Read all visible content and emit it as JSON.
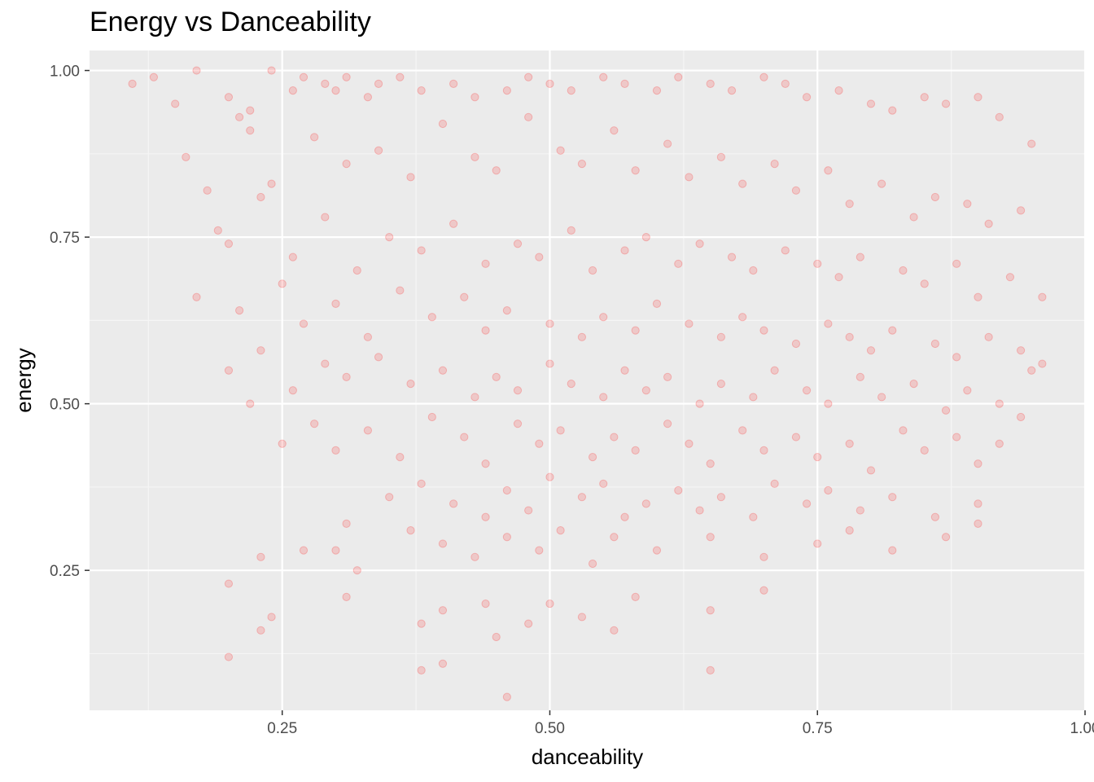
{
  "chart_data": {
    "type": "scatter",
    "title": "Energy vs Danceability",
    "xlabel": "danceability",
    "ylabel": "energy",
    "xlim": [
      0.07,
      1.0
    ],
    "ylim": [
      0.04,
      1.03
    ],
    "x_ticks": [
      0.25,
      0.5,
      0.75,
      1.0
    ],
    "x_tick_labels": [
      "0.25",
      "0.50",
      "0.75",
      "1.00"
    ],
    "y_ticks": [
      0.25,
      0.5,
      0.75,
      1.0
    ],
    "y_tick_labels": [
      "0.25",
      "0.50",
      "0.75",
      "1.00"
    ],
    "x_minor": [
      0.125,
      0.375,
      0.625,
      0.875
    ],
    "y_minor": [
      0.125,
      0.375,
      0.625,
      0.875
    ],
    "grid": true,
    "point_color": "#ff0000",
    "point_alpha": 0.15,
    "background": "#ebebeb",
    "series": [
      {
        "x": [
          0.11,
          0.13,
          0.17,
          0.15,
          0.2,
          0.21,
          0.22,
          0.24,
          0.26,
          0.27,
          0.29,
          0.3,
          0.31,
          0.33,
          0.34,
          0.36,
          0.38,
          0.41,
          0.43,
          0.46,
          0.48,
          0.5,
          0.52,
          0.55,
          0.57,
          0.6,
          0.62,
          0.65,
          0.67,
          0.7,
          0.72,
          0.74,
          0.77,
          0.8,
          0.82,
          0.85,
          0.87,
          0.9,
          0.92,
          0.95,
          0.16,
          0.18,
          0.22,
          0.24,
          0.28,
          0.31,
          0.34,
          0.37,
          0.4,
          0.43,
          0.45,
          0.48,
          0.51,
          0.53,
          0.56,
          0.58,
          0.61,
          0.63,
          0.66,
          0.68,
          0.71,
          0.73,
          0.76,
          0.78,
          0.81,
          0.84,
          0.86,
          0.89,
          0.91,
          0.94,
          0.19,
          0.2,
          0.23,
          0.26,
          0.29,
          0.32,
          0.35,
          0.38,
          0.41,
          0.44,
          0.47,
          0.49,
          0.52,
          0.54,
          0.57,
          0.59,
          0.62,
          0.64,
          0.67,
          0.69,
          0.72,
          0.75,
          0.77,
          0.79,
          0.83,
          0.85,
          0.88,
          0.9,
          0.93,
          0.96,
          0.17,
          0.21,
          0.25,
          0.27,
          0.3,
          0.33,
          0.36,
          0.39,
          0.42,
          0.44,
          0.46,
          0.5,
          0.53,
          0.55,
          0.58,
          0.6,
          0.63,
          0.66,
          0.68,
          0.7,
          0.73,
          0.76,
          0.78,
          0.8,
          0.82,
          0.86,
          0.88,
          0.91,
          0.94,
          0.96,
          0.2,
          0.23,
          0.26,
          0.29,
          0.31,
          0.34,
          0.37,
          0.4,
          0.43,
          0.45,
          0.47,
          0.5,
          0.52,
          0.55,
          0.57,
          0.59,
          0.61,
          0.64,
          0.66,
          0.69,
          0.71,
          0.74,
          0.76,
          0.79,
          0.81,
          0.84,
          0.87,
          0.89,
          0.92,
          0.95,
          0.22,
          0.25,
          0.28,
          0.3,
          0.33,
          0.36,
          0.39,
          0.42,
          0.44,
          0.47,
          0.49,
          0.51,
          0.54,
          0.56,
          0.58,
          0.61,
          0.63,
          0.65,
          0.68,
          0.7,
          0.73,
          0.75,
          0.78,
          0.8,
          0.83,
          0.85,
          0.88,
          0.9,
          0.92,
          0.94,
          0.27,
          0.31,
          0.35,
          0.38,
          0.41,
          0.44,
          0.46,
          0.48,
          0.5,
          0.53,
          0.55,
          0.57,
          0.59,
          0.62,
          0.64,
          0.66,
          0.69,
          0.71,
          0.74,
          0.76,
          0.79,
          0.82,
          0.86,
          0.9,
          0.23,
          0.3,
          0.32,
          0.37,
          0.4,
          0.43,
          0.46,
          0.49,
          0.51,
          0.54,
          0.56,
          0.6,
          0.65,
          0.7,
          0.75,
          0.78,
          0.82,
          0.87,
          0.9,
          0.2,
          0.24,
          0.31,
          0.38,
          0.4,
          0.44,
          0.45,
          0.48,
          0.5,
          0.53,
          0.56,
          0.58,
          0.65,
          0.7,
          0.38,
          0.4,
          0.46,
          0.65,
          0.2,
          0.23
        ],
        "y": [
          0.98,
          0.99,
          1.0,
          0.95,
          0.96,
          0.93,
          0.94,
          1.0,
          0.97,
          0.99,
          0.98,
          0.97,
          0.99,
          0.96,
          0.98,
          0.99,
          0.97,
          0.98,
          0.96,
          0.97,
          0.99,
          0.98,
          0.97,
          0.99,
          0.98,
          0.97,
          0.99,
          0.98,
          0.97,
          0.99,
          0.98,
          0.96,
          0.97,
          0.95,
          0.94,
          0.96,
          0.95,
          0.96,
          0.93,
          0.89,
          0.87,
          0.82,
          0.91,
          0.83,
          0.9,
          0.86,
          0.88,
          0.84,
          0.92,
          0.87,
          0.85,
          0.93,
          0.88,
          0.86,
          0.91,
          0.85,
          0.89,
          0.84,
          0.87,
          0.83,
          0.86,
          0.82,
          0.85,
          0.8,
          0.83,
          0.78,
          0.81,
          0.8,
          0.77,
          0.79,
          0.76,
          0.74,
          0.81,
          0.72,
          0.78,
          0.7,
          0.75,
          0.73,
          0.77,
          0.71,
          0.74,
          0.72,
          0.76,
          0.7,
          0.73,
          0.75,
          0.71,
          0.74,
          0.72,
          0.7,
          0.73,
          0.71,
          0.69,
          0.72,
          0.7,
          0.68,
          0.71,
          0.66,
          0.69,
          0.66,
          0.66,
          0.64,
          0.68,
          0.62,
          0.65,
          0.6,
          0.67,
          0.63,
          0.66,
          0.61,
          0.64,
          0.62,
          0.6,
          0.63,
          0.61,
          0.65,
          0.62,
          0.6,
          0.63,
          0.61,
          0.59,
          0.62,
          0.6,
          0.58,
          0.61,
          0.59,
          0.57,
          0.6,
          0.58,
          0.56,
          0.55,
          0.58,
          0.52,
          0.56,
          0.54,
          0.57,
          0.53,
          0.55,
          0.51,
          0.54,
          0.52,
          0.56,
          0.53,
          0.51,
          0.55,
          0.52,
          0.54,
          0.5,
          0.53,
          0.51,
          0.55,
          0.52,
          0.5,
          0.54,
          0.51,
          0.53,
          0.49,
          0.52,
          0.5,
          0.55,
          0.5,
          0.44,
          0.47,
          0.43,
          0.46,
          0.42,
          0.48,
          0.45,
          0.41,
          0.47,
          0.44,
          0.46,
          0.42,
          0.45,
          0.43,
          0.47,
          0.44,
          0.41,
          0.46,
          0.43,
          0.45,
          0.42,
          0.44,
          0.4,
          0.46,
          0.43,
          0.45,
          0.41,
          0.44,
          0.48,
          0.28,
          0.32,
          0.36,
          0.38,
          0.35,
          0.33,
          0.37,
          0.34,
          0.39,
          0.36,
          0.38,
          0.33,
          0.35,
          0.37,
          0.34,
          0.36,
          0.33,
          0.38,
          0.35,
          0.37,
          0.34,
          0.36,
          0.33,
          0.35,
          0.27,
          0.28,
          0.25,
          0.31,
          0.29,
          0.27,
          0.3,
          0.28,
          0.31,
          0.26,
          0.3,
          0.28,
          0.3,
          0.27,
          0.29,
          0.31,
          0.28,
          0.3,
          0.32,
          0.23,
          0.18,
          0.21,
          0.17,
          0.19,
          0.2,
          0.15,
          0.17,
          0.2,
          0.18,
          0.16,
          0.21,
          0.19,
          0.22,
          0.1,
          0.11,
          0.06,
          0.1,
          0.12,
          0.16
        ]
      }
    ]
  }
}
